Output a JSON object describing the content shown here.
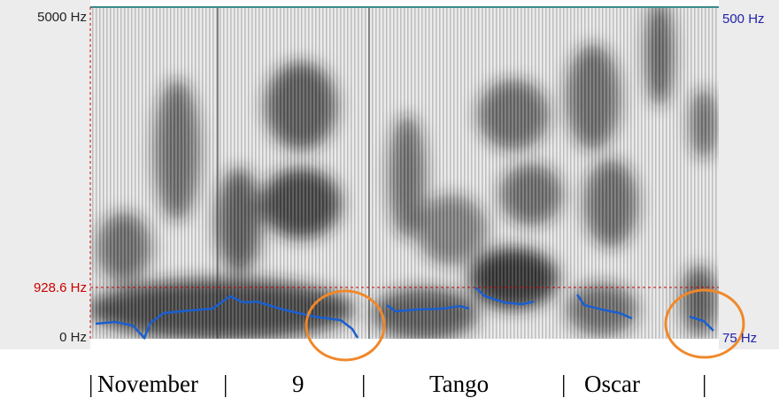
{
  "left_axis": {
    "top": "5000 Hz",
    "marker": "928.6 Hz",
    "bottom": "0 Hz"
  },
  "right_axis": {
    "top": "500 Hz",
    "bottom": "75 Hz"
  },
  "transcript": [
    "|",
    "November",
    "|",
    "9",
    "|",
    "Tango",
    "|",
    "Oscar",
    "|"
  ]
}
